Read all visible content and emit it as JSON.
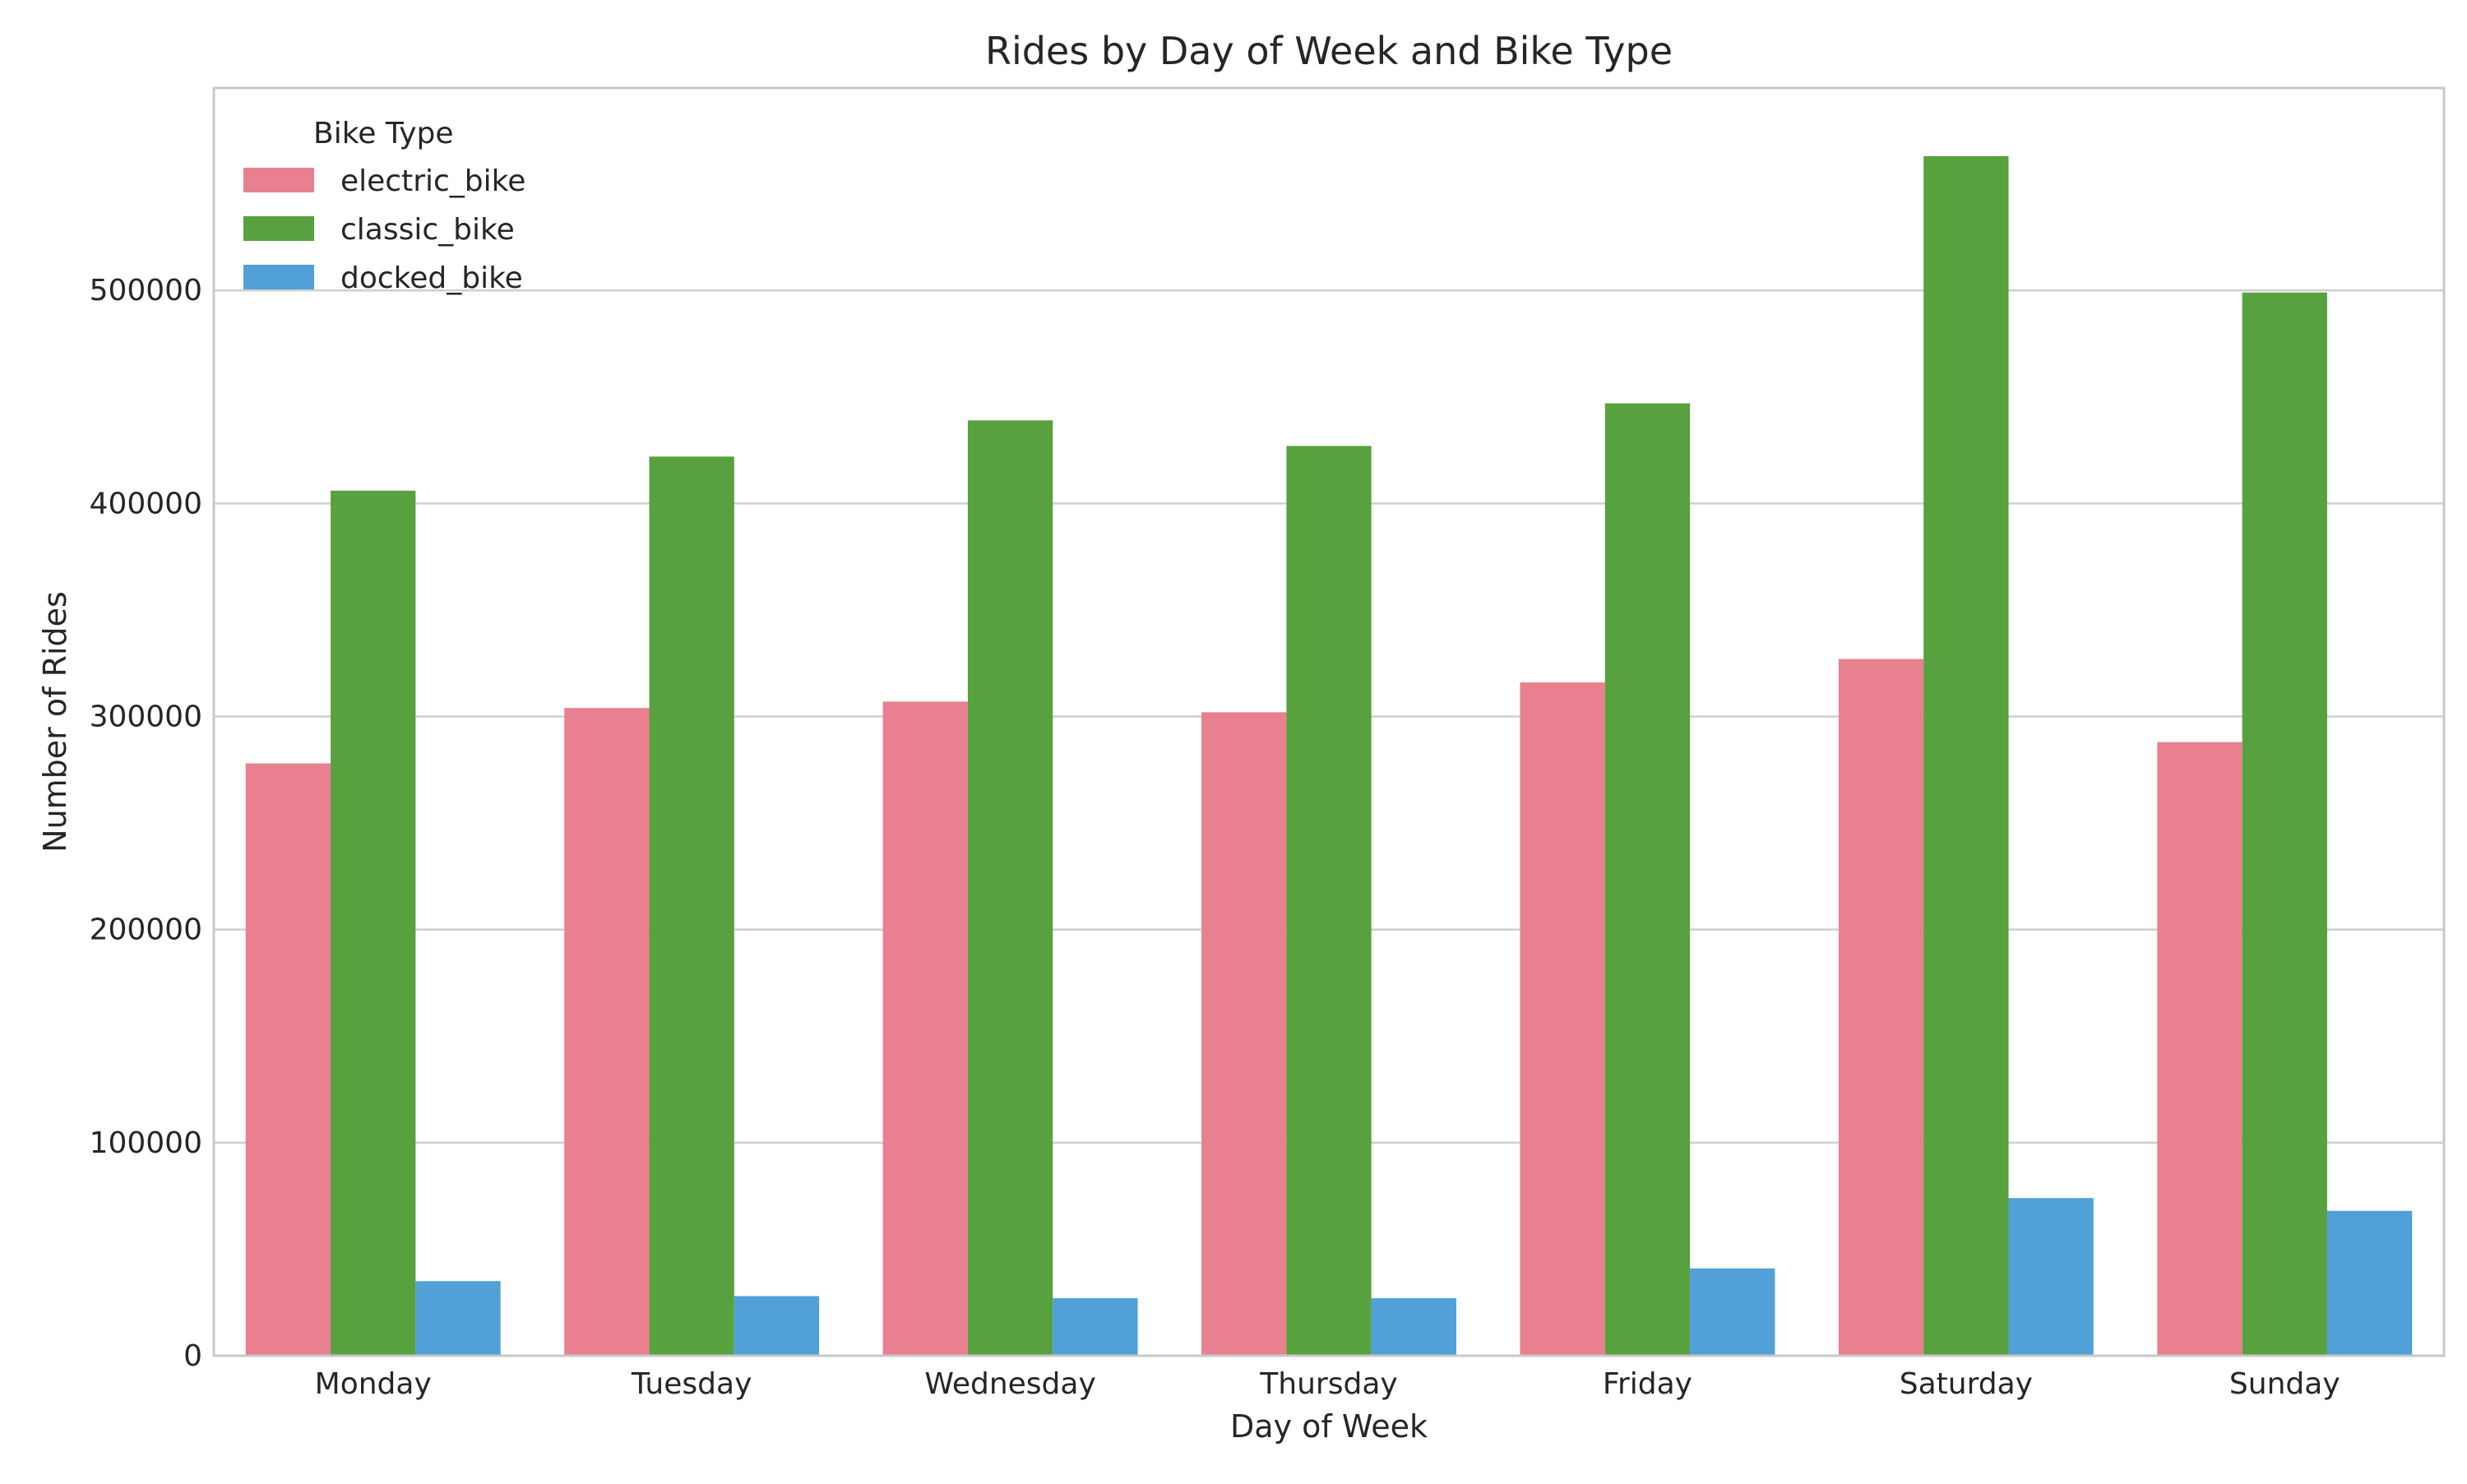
{
  "chart_data": {
    "type": "bar",
    "title": "Rides by Day of Week and Bike Type",
    "xlabel": "Day of Week",
    "ylabel": "Number of Rides",
    "categories": [
      "Monday",
      "Tuesday",
      "Wednesday",
      "Thursday",
      "Friday",
      "Saturday",
      "Sunday"
    ],
    "series": [
      {
        "name": "electric_bike",
        "color": "#e8808f",
        "values": [
          278000,
          304000,
          307000,
          302000,
          316000,
          327000,
          288000
        ]
      },
      {
        "name": "classic_bike",
        "color": "#58a13f",
        "values": [
          406000,
          422000,
          439000,
          427000,
          447000,
          563000,
          499000
        ]
      },
      {
        "name": "docked_bike",
        "color": "#51a0d8",
        "values": [
          35000,
          28000,
          27000,
          27000,
          41000,
          74000,
          68000
        ]
      }
    ],
    "ylim": [
      0,
      595000
    ],
    "yticks": [
      0,
      100000,
      200000,
      300000,
      400000,
      500000
    ],
    "ytick_labels": [
      "0",
      "100000",
      "200000",
      "300000",
      "400000",
      "500000"
    ],
    "grid": true,
    "legend": {
      "title": "Bike Type",
      "placement": "top-left"
    }
  }
}
